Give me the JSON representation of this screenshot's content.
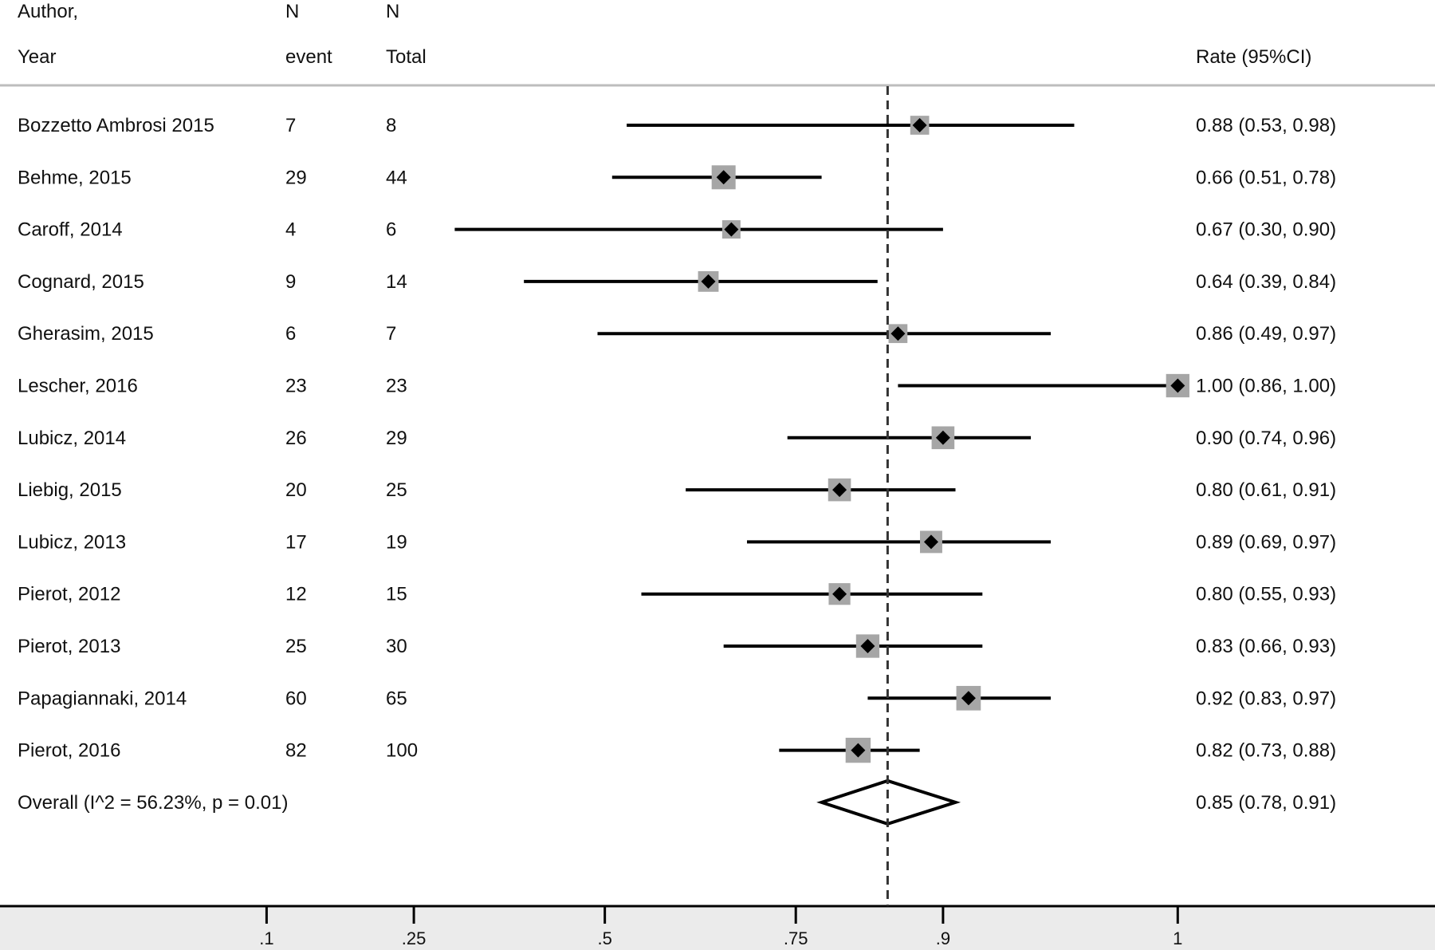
{
  "headers": {
    "author_line1": "Author,",
    "author_line2": "Year",
    "n_event_line1": "N",
    "n_event_line2": "event",
    "n_total_line1": "N",
    "n_total_line2": "Total",
    "rate": "Rate (95%CI)"
  },
  "rows": [
    {
      "study": "Bozzetto Ambrosi 2015",
      "events": "7",
      "total": "8",
      "rate_text": "0.88 (0.53, 0.98)"
    },
    {
      "study": "Behme, 2015",
      "events": "29",
      "total": "44",
      "rate_text": "0.66 (0.51, 0.78)"
    },
    {
      "study": "Caroff, 2014",
      "events": "4",
      "total": "6",
      "rate_text": "0.67 (0.30, 0.90)"
    },
    {
      "study": "Cognard, 2015",
      "events": "9",
      "total": "14",
      "rate_text": "0.64 (0.39, 0.84)"
    },
    {
      "study": "Gherasim, 2015",
      "events": "6",
      "total": "7",
      "rate_text": "0.86 (0.49, 0.97)"
    },
    {
      "study": "Lescher, 2016",
      "events": "23",
      "total": "23",
      "rate_text": "1.00 (0.86, 1.00)"
    },
    {
      "study": "Lubicz, 2014",
      "events": "26",
      "total": "29",
      "rate_text": "0.90 (0.74, 0.96)"
    },
    {
      "study": "Liebig, 2015",
      "events": "20",
      "total": "25",
      "rate_text": "0.80 (0.61, 0.91)"
    },
    {
      "study": "Lubicz, 2013",
      "events": "17",
      "total": "19",
      "rate_text": "0.89 (0.69, 0.97)"
    },
    {
      "study": "Pierot, 2012",
      "events": "12",
      "total": "15",
      "rate_text": "0.80 (0.55, 0.93)"
    },
    {
      "study": "Pierot, 2013",
      "events": "25",
      "total": "30",
      "rate_text": "0.83 (0.66, 0.93)"
    },
    {
      "study": "Papagiannaki, 2014",
      "events": "60",
      "total": "65",
      "rate_text": "0.92 (0.83, 0.97)"
    },
    {
      "study": "Pierot, 2016",
      "events": "82",
      "total": "100",
      "rate_text": "0.82 (0.73, 0.88)"
    }
  ],
  "overall": {
    "label": "Overall  (I^2 = 56.23%, p = 0.01)",
    "rate_text": "0.85 (0.78, 0.91)"
  },
  "colors": {
    "marker": "#000000",
    "weight_box": "#a6a6a6",
    "axis_band": "#ebebeb",
    "divider": "#bdbdbd"
  },
  "chart_data": {
    "type": "forest",
    "scale": "arcsine-sqrt",
    "xlim": [
      0,
      1
    ],
    "x_ticks": [
      {
        "value": 0.1,
        "label": ".1"
      },
      {
        "value": 0.25,
        "label": ".25"
      },
      {
        "value": 0.5,
        "label": ".5"
      },
      {
        "value": 0.75,
        "label": ".75"
      },
      {
        "value": 0.9,
        "label": ".9"
      },
      {
        "value": 1.0,
        "label": "1"
      }
    ],
    "reference_line": 0.85,
    "studies": [
      {
        "rate": 0.88,
        "lower": 0.53,
        "upper": 0.98,
        "weight": 0.55
      },
      {
        "rate": 0.66,
        "lower": 0.51,
        "upper": 0.78,
        "weight": 1.0
      },
      {
        "rate": 0.67,
        "lower": 0.3,
        "upper": 0.9,
        "weight": 0.5
      },
      {
        "rate": 0.64,
        "lower": 0.39,
        "upper": 0.84,
        "weight": 0.7
      },
      {
        "rate": 0.86,
        "lower": 0.49,
        "upper": 0.97,
        "weight": 0.55
      },
      {
        "rate": 1.0,
        "lower": 0.86,
        "upper": 1.0,
        "weight": 0.95
      },
      {
        "rate": 0.9,
        "lower": 0.74,
        "upper": 0.96,
        "weight": 0.9
      },
      {
        "rate": 0.8,
        "lower": 0.61,
        "upper": 0.91,
        "weight": 0.9
      },
      {
        "rate": 0.89,
        "lower": 0.69,
        "upper": 0.97,
        "weight": 0.85
      },
      {
        "rate": 0.8,
        "lower": 0.55,
        "upper": 0.93,
        "weight": 0.8
      },
      {
        "rate": 0.83,
        "lower": 0.66,
        "upper": 0.93,
        "weight": 0.95
      },
      {
        "rate": 0.92,
        "lower": 0.83,
        "upper": 0.97,
        "weight": 1.05
      },
      {
        "rate": 0.82,
        "lower": 0.73,
        "upper": 0.88,
        "weight": 1.1
      }
    ],
    "overall": {
      "rate": 0.85,
      "lower": 0.78,
      "upper": 0.91
    }
  }
}
